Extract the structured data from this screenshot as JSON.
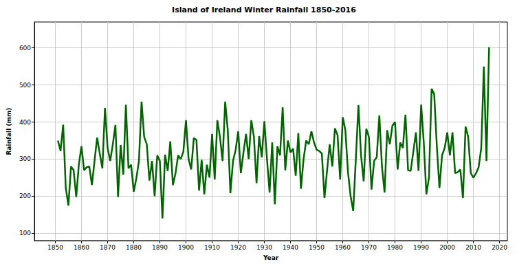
{
  "chart_data": {
    "type": "line",
    "title": "Island of Ireland Winter Rainfall 1850-2016",
    "x_label": "Year",
    "y_label": "Rainfall (mm)",
    "color": "#006400",
    "grid": true,
    "xlim": [
      1842,
      2023
    ],
    "xticks": [
      1850,
      1860,
      1870,
      1880,
      1890,
      1900,
      1910,
      1920,
      1930,
      1940,
      1950,
      1960,
      1970,
      1980,
      1990,
      2000,
      2010,
      2020
    ],
    "ylim": [
      80,
      670
    ],
    "yticks": [
      100,
      200,
      300,
      400,
      500,
      600
    ],
    "x": [
      1851,
      1852,
      1853,
      1854,
      1855,
      1856,
      1857,
      1858,
      1859,
      1860,
      1861,
      1862,
      1863,
      1864,
      1865,
      1866,
      1867,
      1868,
      1869,
      1870,
      1871,
      1872,
      1873,
      1874,
      1875,
      1876,
      1877,
      1878,
      1879,
      1880,
      1881,
      1882,
      1883,
      1884,
      1885,
      1886,
      1887,
      1888,
      1889,
      1890,
      1891,
      1892,
      1893,
      1894,
      1895,
      1896,
      1897,
      1898,
      1899,
      1900,
      1901,
      1902,
      1903,
      1904,
      1905,
      1906,
      1907,
      1908,
      1909,
      1910,
      1911,
      1912,
      1913,
      1914,
      1915,
      1916,
      1917,
      1918,
      1919,
      1920,
      1921,
      1922,
      1923,
      1924,
      1925,
      1926,
      1927,
      1928,
      1929,
      1930,
      1931,
      1932,
      1933,
      1934,
      1935,
      1936,
      1937,
      1938,
      1939,
      1940,
      1941,
      1942,
      1943,
      1944,
      1945,
      1946,
      1947,
      1948,
      1949,
      1950,
      1951,
      1952,
      1953,
      1954,
      1955,
      1956,
      1957,
      1958,
      1959,
      1960,
      1961,
      1962,
      1963,
      1964,
      1965,
      1966,
      1967,
      1968,
      1969,
      1970,
      1971,
      1972,
      1973,
      1974,
      1975,
      1976,
      1977,
      1978,
      1979,
      1980,
      1981,
      1982,
      1983,
      1984,
      1985,
      1986,
      1987,
      1988,
      1989,
      1990,
      1991,
      1992,
      1993,
      1994,
      1995,
      1996,
      1997,
      1998,
      1999,
      2000,
      2001,
      2002,
      2003,
      2004,
      2005,
      2006,
      2007,
      2008,
      2009,
      2010,
      2011,
      2012,
      2013,
      2014,
      2015,
      2016
    ],
    "values": [
      350,
      322,
      393,
      222,
      175,
      280,
      270,
      198,
      285,
      335,
      270,
      278,
      280,
      230,
      295,
      358,
      315,
      275,
      438,
      330,
      295,
      340,
      392,
      198,
      338,
      258,
      447,
      275,
      285,
      212,
      248,
      295,
      455,
      360,
      340,
      242,
      295,
      200,
      310,
      295,
      140,
      312,
      268,
      348,
      230,
      262,
      310,
      300,
      320,
      405,
      300,
      272,
      357,
      352,
      215,
      298,
      205,
      285,
      250,
      368,
      245,
      405,
      360,
      295,
      455,
      378,
      208,
      295,
      325,
      375,
      262,
      318,
      368,
      300,
      405,
      360,
      235,
      362,
      305,
      402,
      300,
      210,
      345,
      178,
      335,
      310,
      440,
      270,
      350,
      318,
      328,
      255,
      370,
      220,
      300,
      350,
      340,
      375,
      345,
      325,
      322,
      315,
      195,
      270,
      340,
      280,
      383,
      365,
      245,
      413,
      378,
      265,
      200,
      160,
      300,
      446,
      310,
      240,
      382,
      360,
      218,
      295,
      305,
      418,
      280,
      210,
      378,
      340,
      390,
      400,
      272,
      345,
      330,
      420,
      270,
      268,
      320,
      372,
      268,
      447,
      345,
      205,
      250,
      490,
      475,
      335,
      222,
      310,
      330,
      372,
      310,
      372,
      262,
      265,
      272,
      195,
      388,
      360,
      262,
      250,
      262,
      278,
      330,
      550,
      295,
      602
    ]
  }
}
